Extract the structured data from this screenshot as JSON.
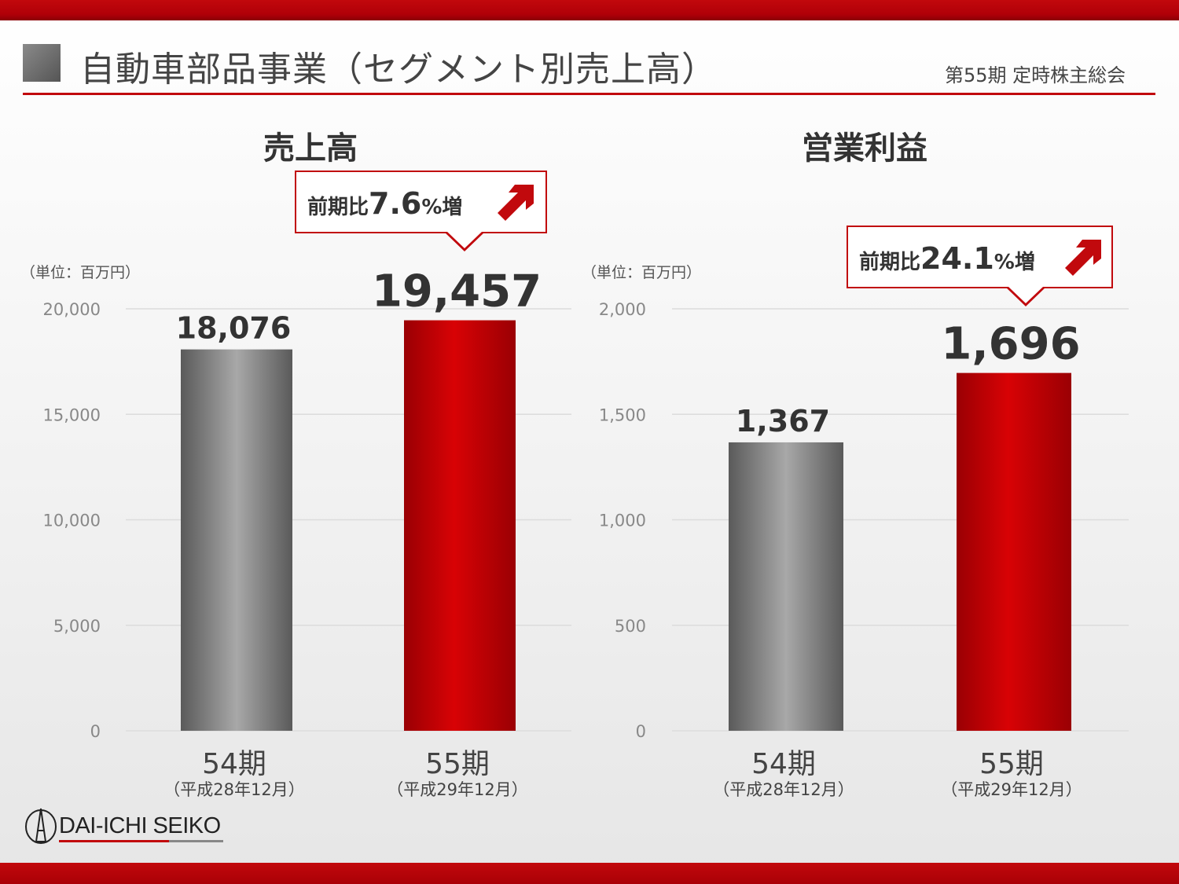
{
  "header": {
    "title": "自動車部品事業（セグメント別売上高）",
    "meeting": "第55期 定時株主総会"
  },
  "logo": {
    "text": "DAI-ICHI SEIKO"
  },
  "colors": {
    "accent": "#c1090d",
    "bar_prior": "#8c8c8c",
    "bar_current": "#cc0000"
  },
  "chart_data": [
    {
      "type": "bar",
      "title": "売上高",
      "unit": "（単位：百万円）",
      "categories": [
        "54期",
        "55期"
      ],
      "category_sub": [
        "（平成28年12月）",
        "（平成29年12月）"
      ],
      "values": [
        18076,
        19457
      ],
      "value_labels": [
        "18,076",
        "19,457"
      ],
      "ylim": [
        0,
        20000
      ],
      "yticks": [
        0,
        5000,
        10000,
        15000,
        20000
      ],
      "ytick_labels": [
        "0",
        "5,000",
        "10,000",
        "15,000",
        "20,000"
      ],
      "grid": true,
      "callout": {
        "prefix": "前期比",
        "value": "7.6",
        "suffix": "%増"
      }
    },
    {
      "type": "bar",
      "title": "営業利益",
      "unit": "（単位：百万円）",
      "categories": [
        "54期",
        "55期"
      ],
      "category_sub": [
        "（平成28年12月）",
        "（平成29年12月）"
      ],
      "values": [
        1367,
        1696
      ],
      "value_labels": [
        "1,367",
        "1,696"
      ],
      "ylim": [
        0,
        2000
      ],
      "yticks": [
        0,
        500,
        1000,
        1500,
        2000
      ],
      "ytick_labels": [
        "0",
        "500",
        "1,000",
        "1,500",
        "2,000"
      ],
      "grid": true,
      "callout": {
        "prefix": "前期比",
        "value": "24.1",
        "suffix": "%増"
      }
    }
  ]
}
